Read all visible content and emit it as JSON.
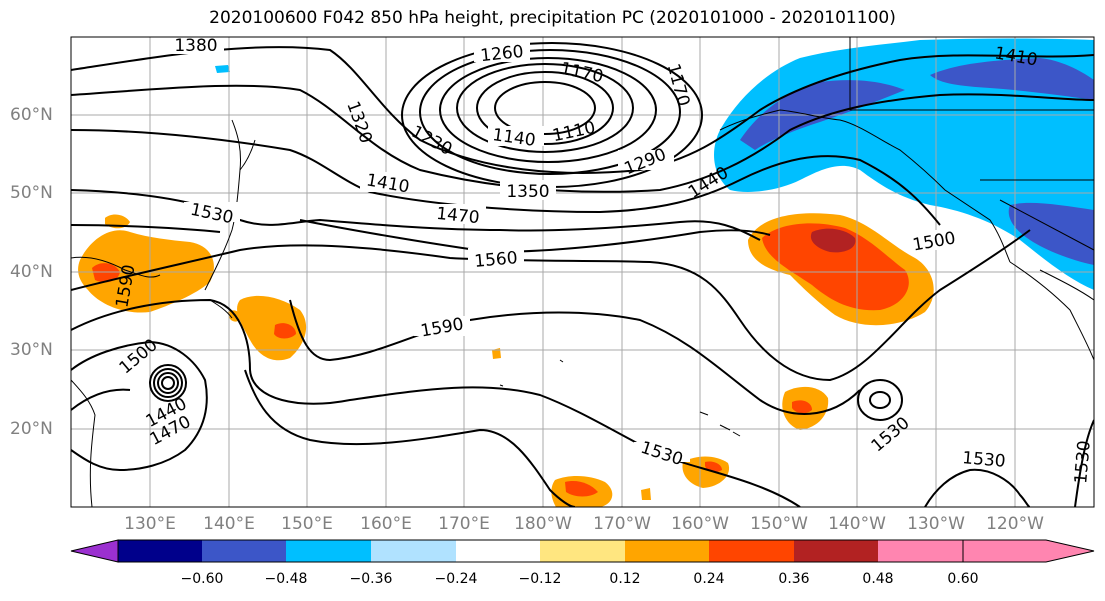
{
  "title": "2020100600 F042 850 hPa height, precipitation PC (2020101000 - 2020101100)",
  "lon_labels": [
    "130°E",
    "140°E",
    "150°E",
    "160°E",
    "170°E",
    "180°W",
    "170°W",
    "160°W",
    "150°W",
    "140°W",
    "130°W",
    "120°W"
  ],
  "lat_labels": [
    "60°N",
    "50°N",
    "40°N",
    "30°N",
    "20°N"
  ],
  "contour_labels": [
    "1380",
    "1260",
    "1170",
    "1170",
    "1320",
    "1230",
    "1140",
    "1110",
    "1290",
    "1410",
    "1350",
    "1470",
    "1440",
    "1410",
    "1530",
    "1560",
    "1500",
    "1590",
    "1500",
    "1440",
    "1470",
    "1590",
    "1530",
    "1530",
    "1530",
    "1530"
  ],
  "colorbar": {
    "colors": [
      "#9b30d0",
      "#00008b",
      "#3c56c8",
      "#00bfff",
      "#b0e2ff",
      "#ffffff",
      "#ffe680",
      "#ffa500",
      "#ff4500",
      "#b22222",
      "#ff85b0"
    ],
    "tick_labels": [
      "−0.60",
      "−0.48",
      "−0.36",
      "−0.24",
      "−0.12",
      "0.12",
      "0.24",
      "0.36",
      "0.48",
      "0.60"
    ]
  }
}
